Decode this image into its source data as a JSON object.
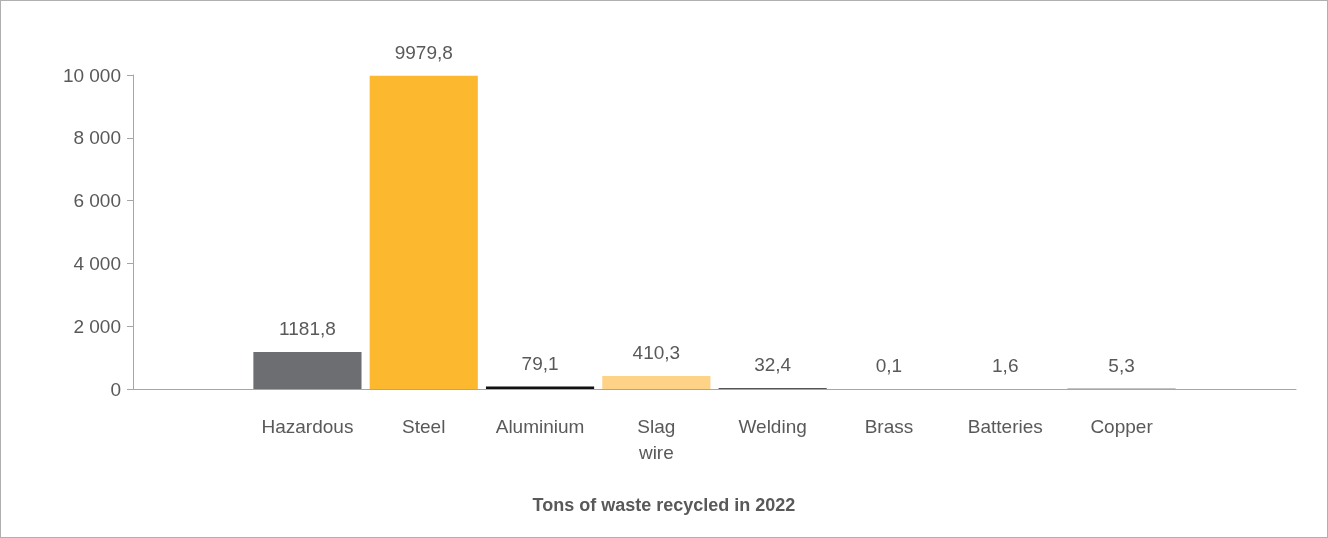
{
  "chart_data": {
    "type": "bar",
    "title": "Tons of waste recycled in 2022",
    "categories": [
      null,
      "Hazardous",
      "Steel",
      "Aluminium",
      "Slag\nwire",
      "Welding",
      "Brass",
      "Batteries",
      "Copper",
      null
    ],
    "values": [
      null,
      1181.8,
      9979.8,
      79.1,
      410.3,
      32.4,
      0.1,
      1.6,
      5.3,
      null
    ],
    "colors": [
      "#6d6e71",
      "#6d6e71",
      "#fcb92f",
      "#111111",
      "#fed287",
      "#555555",
      "#111111",
      "#111111",
      "#111111",
      "#111111"
    ],
    "value_labels": [
      null,
      "1181,8",
      "9979,8",
      "79,1",
      "410,3",
      "32,4",
      "0,1",
      "1,6",
      "5,3",
      null
    ],
    "ylim": [
      0,
      10000
    ],
    "yticks": [
      0,
      {
        "value": 2000,
        "label": "2 000"
      },
      {
        "value": 4000,
        "label": "4 000"
      },
      {
        "value": 6000,
        "label": "6 000"
      },
      {
        "value": 8000,
        "label": "8 000"
      },
      {
        "value": 10000,
        "label": "10 000"
      }
    ],
    "grid": false
  }
}
